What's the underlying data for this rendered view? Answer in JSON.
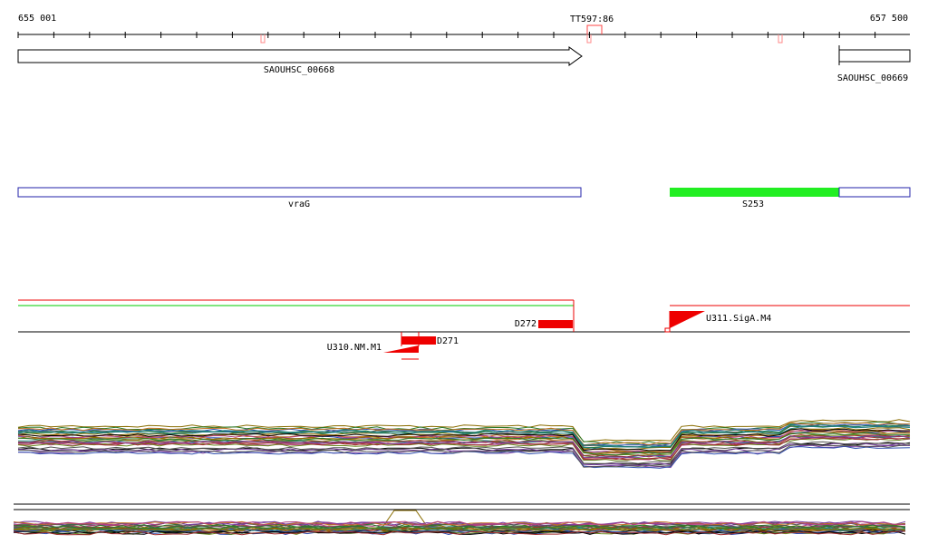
{
  "ruler": {
    "start": "655 001",
    "end": "657 500",
    "marker": "TT597:86"
  },
  "genes": [
    "SAOUHSC_00668",
    "SAOUHSC_00669"
  ],
  "features": [
    "vraG",
    "S253"
  ],
  "regulators": [
    "D272",
    "D271",
    "U311.SigA.M4",
    "U310.NM.M1"
  ]
}
